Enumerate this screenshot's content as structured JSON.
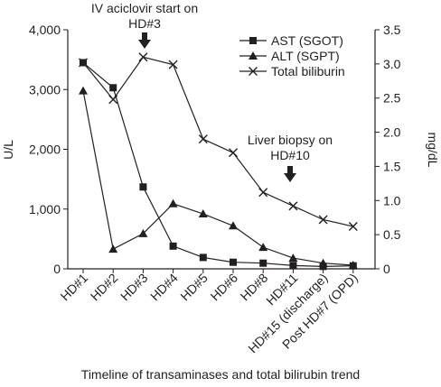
{
  "chart_data": {
    "type": "line",
    "xlabel": "Timeline of transaminases and total bilirubin trend",
    "ylabel_left": "U/L",
    "ylabel_right": "mg/dL",
    "categories": [
      "HD#1",
      "HD#2",
      "HD#3",
      "HD#4",
      "HD#5",
      "HD#6",
      "HD#8",
      "HD#11",
      "HD#15 (discharge)",
      "Post HD#7 (OPD)"
    ],
    "ylim_left": [
      0,
      4000
    ],
    "yticks_left": [
      "0",
      "1,000",
      "2,000",
      "3,000",
      "4,000"
    ],
    "ylim_right": [
      0,
      3.5
    ],
    "yticks_right": [
      "0",
      "0.5",
      "1.0",
      "1.5",
      "2.0",
      "2.5",
      "3.0",
      "3.5"
    ],
    "grid": false,
    "legend_position": "top-right",
    "series": [
      {
        "name": "AST (SGOT)",
        "axis": "left",
        "marker": "square",
        "values": [
          3450,
          3030,
          1370,
          380,
          190,
          110,
          95,
          55,
          40,
          50
        ]
      },
      {
        "name": "ALT (SGPT)",
        "axis": "left",
        "marker": "triangle",
        "values": [
          2980,
          330,
          590,
          1090,
          920,
          720,
          360,
          180,
          95,
          60
        ]
      },
      {
        "name": "Total biliburin",
        "axis": "right",
        "marker": "x",
        "values": [
          3.02,
          2.48,
          3.1,
          2.99,
          1.9,
          1.7,
          1.12,
          0.92,
          0.72,
          0.62
        ]
      }
    ],
    "annotations": [
      {
        "text_lines": [
          "IV aciclovir start on",
          "HD#3"
        ],
        "category": "HD#3"
      },
      {
        "text_lines": [
          "Liver biopsy on",
          "HD#10"
        ],
        "category": "HD#11"
      }
    ]
  }
}
